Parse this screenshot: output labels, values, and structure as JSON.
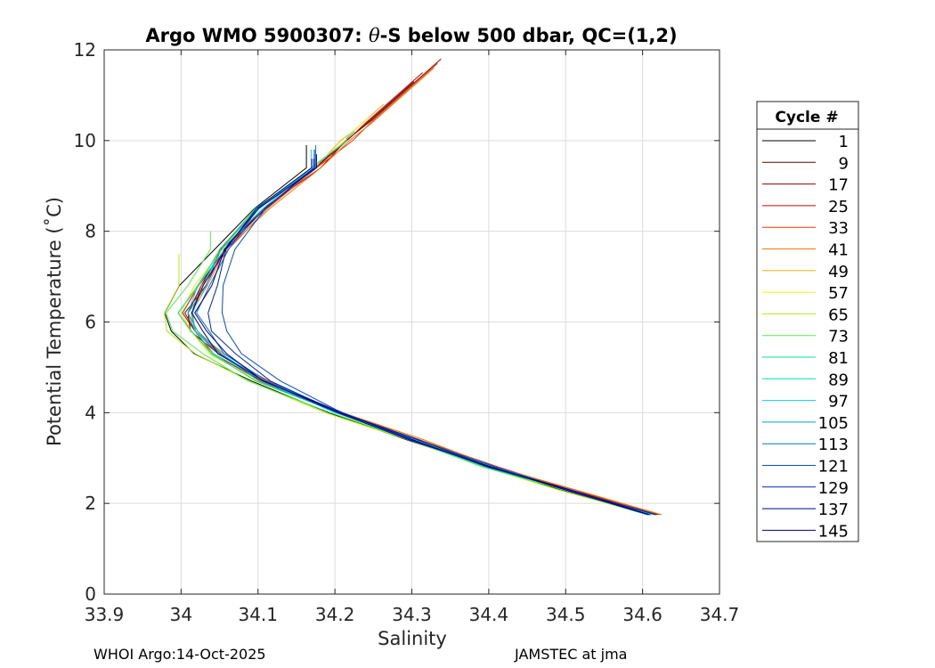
{
  "chart_data": {
    "type": "line",
    "title_prefix": "Argo WMO 5900307: ",
    "title_theta": "θ",
    "title_suffix": "-S below 500 dbar,  QC=(1,2)",
    "xlabel": "Salinity",
    "ylabel": "Potential Temperature (˚C)",
    "xlim": [
      33.9,
      34.7
    ],
    "ylim": [
      0,
      12
    ],
    "xticks": [
      33.9,
      34,
      34.1,
      34.2,
      34.3,
      34.4,
      34.5,
      34.6,
      34.7
    ],
    "xtick_labels": [
      "33.9",
      "34",
      "34.1",
      "34.2",
      "34.3",
      "34.4",
      "34.5",
      "34.6",
      "34.7"
    ],
    "yticks": [
      0,
      2,
      4,
      6,
      8,
      10,
      12
    ],
    "ytick_labels": [
      "0",
      "2",
      "4",
      "6",
      "8",
      "10",
      "12"
    ],
    "grid": true,
    "legend": {
      "title": "Cycle #",
      "placement": "right-outside",
      "entries": [
        {
          "label": "1",
          "color": "#000000"
        },
        {
          "label": "9",
          "color": "#5a0000"
        },
        {
          "label": "17",
          "color": "#960000"
        },
        {
          "label": "25",
          "color": "#c80000"
        },
        {
          "label": "33",
          "color": "#e63c00"
        },
        {
          "label": "41",
          "color": "#f07800"
        },
        {
          "label": "49",
          "color": "#e6b400"
        },
        {
          "label": "57",
          "color": "#f0f000"
        },
        {
          "label": "65",
          "color": "#aaf000"
        },
        {
          "label": "73",
          "color": "#50f050"
        },
        {
          "label": "81",
          "color": "#00e696"
        },
        {
          "label": "89",
          "color": "#00dcc8"
        },
        {
          "label": "97",
          "color": "#00d2e6"
        },
        {
          "label": "105",
          "color": "#00a0d2"
        },
        {
          "label": "113",
          "color": "#0078c8"
        },
        {
          "label": "121",
          "color": "#0050c8"
        },
        {
          "label": "129",
          "color": "#0028b4"
        },
        {
          "label": "137",
          "color": "#000096"
        },
        {
          "label": "145",
          "color": "#00008c"
        }
      ]
    },
    "series_shape": {
      "s": [
        34.21,
        34.17,
        34.1,
        34.05,
        34.02,
        34.0,
        34.01,
        34.04,
        34.1,
        34.2,
        34.3,
        34.4,
        34.5,
        34.61
      ],
      "t": [
        10.0,
        9.4,
        8.5,
        7.6,
        6.8,
        6.2,
        5.8,
        5.3,
        4.7,
        4.0,
        3.4,
        2.8,
        2.3,
        1.75
      ]
    },
    "series": [
      {
        "name": "1",
        "color": "#000000",
        "s_offset": -0.004,
        "t_max": 9.9,
        "min_s_shift": -0.02
      },
      {
        "name": "9",
        "color": "#5a0000",
        "s_offset": 0.006,
        "t_max": 11.3,
        "min_s_shift": 0.0
      },
      {
        "name": "17",
        "color": "#960000",
        "s_offset": 0.008,
        "t_max": 11.8,
        "min_s_shift": 0.0
      },
      {
        "name": "25",
        "color": "#c80000",
        "s_offset": 0.004,
        "t_max": 11.5,
        "min_s_shift": 0.0
      },
      {
        "name": "33",
        "color": "#e63c00",
        "s_offset": 0.01,
        "t_max": 11.7,
        "min_s_shift": 0.0
      },
      {
        "name": "41",
        "color": "#f07800",
        "s_offset": 0.012,
        "t_max": 11.6,
        "min_s_shift": 0.0
      },
      {
        "name": "49",
        "color": "#e6b400",
        "s_offset": 0.0,
        "t_max": 10.8,
        "min_s_shift": 0.0
      },
      {
        "name": "57",
        "color": "#f0f000",
        "s_offset": 0.0,
        "t_max": 10.5,
        "min_s_shift": 0.0
      },
      {
        "name": "65",
        "color": "#aaf000",
        "s_offset": -0.006,
        "t_max": 7.5,
        "min_s_shift": -0.02
      },
      {
        "name": "73",
        "color": "#50f050",
        "s_offset": -0.004,
        "t_max": 8.0,
        "min_s_shift": -0.015
      },
      {
        "name": "81",
        "color": "#00e696",
        "s_offset": 0.0,
        "t_max": 9.5,
        "min_s_shift": 0.0
      },
      {
        "name": "89",
        "color": "#00dcc8",
        "s_offset": 0.002,
        "t_max": 10.2,
        "min_s_shift": 0.005
      },
      {
        "name": "97",
        "color": "#00d2e6",
        "s_offset": 0.002,
        "t_max": 9.8,
        "min_s_shift": 0.01
      },
      {
        "name": "105",
        "color": "#00a0d2",
        "s_offset": 0.0,
        "t_max": 9.7,
        "min_s_shift": 0.012
      },
      {
        "name": "113",
        "color": "#0078c8",
        "s_offset": 0.003,
        "t_max": 9.9,
        "min_s_shift": 0.02
      },
      {
        "name": "121",
        "color": "#0050c8",
        "s_offset": 0.006,
        "t_max": 9.6,
        "min_s_shift": 0.045
      },
      {
        "name": "129",
        "color": "#0028b4",
        "s_offset": 0.004,
        "t_max": 9.8,
        "min_s_shift": 0.03
      },
      {
        "name": "137",
        "color": "#000096",
        "s_offset": 0.002,
        "t_max": 9.7,
        "min_s_shift": 0.02
      },
      {
        "name": "145",
        "color": "#00008c",
        "s_offset": 0.0,
        "t_max": 9.6,
        "min_s_shift": 0.015
      }
    ]
  },
  "footer": {
    "left": "WHOI Argo:14-Oct-2025",
    "right": "JAMSTEC at jma"
  }
}
